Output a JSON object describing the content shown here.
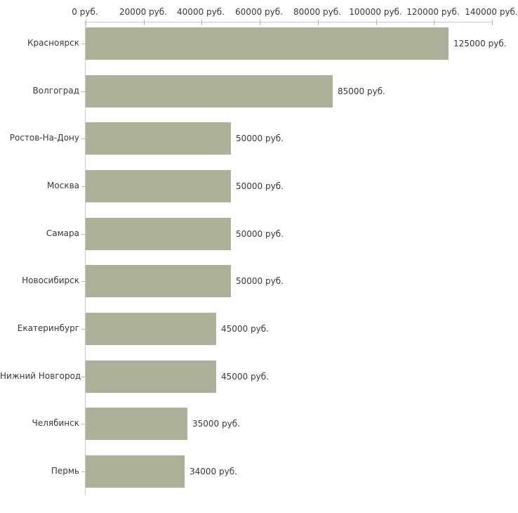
{
  "chart_data": {
    "type": "bar",
    "orientation": "horizontal",
    "title": "",
    "xlabel": "",
    "ylabel": "",
    "categories": [
      "Красноярск",
      "Волгоград",
      "Ростов-На-Дону",
      "Москва",
      "Самара",
      "Новосибирск",
      "Екатеринбург",
      "Нижний Новгород",
      "Челябинск",
      "Пермь"
    ],
    "values": [
      125000,
      85000,
      50000,
      50000,
      50000,
      50000,
      45000,
      45000,
      35000,
      34000
    ],
    "value_labels": [
      "125000 руб.",
      "85000 руб.",
      "50000 руб.",
      "50000 руб.",
      "50000 руб.",
      "50000 руб.",
      "45000 руб.",
      "45000 руб.",
      "35000 руб.",
      "34000 руб."
    ],
    "x_tick_values": [
      0,
      20000,
      40000,
      60000,
      80000,
      100000,
      120000,
      140000
    ],
    "x_tick_labels": [
      "0 руб.",
      "20000 руб.",
      "40000 руб.",
      "60000 руб.",
      "80000 руб.",
      "100000 руб.",
      "120000 руб.",
      "140000 руб."
    ],
    "xlim": [
      0,
      140000
    ],
    "grid": false,
    "legend": "none",
    "currency_suffix": "руб.",
    "colors": {
      "bar": "#acb29a",
      "axis_line": "#c9c9c9",
      "tick_mark": "#b9bb8d",
      "text": "#383838",
      "background": "#ffffff"
    }
  }
}
